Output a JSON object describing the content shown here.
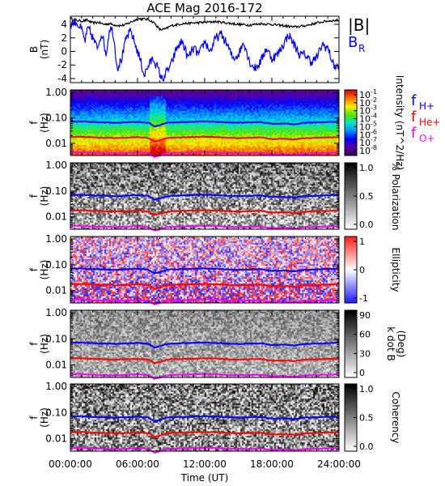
{
  "title": "ACE Mag 2016-172",
  "xlabel": "Time (UT)",
  "colors": {
    "fHp": "#0000ff",
    "fHep": "#ff0000",
    "fOp": "#ff00ff",
    "br": "#0000ff",
    "babs": "#000000"
  },
  "chart_data": [
    {
      "type": "line",
      "panel": "B",
      "ylabel": "B (nT)",
      "ylim": [
        -4.6,
        5.2
      ],
      "yticks": [
        "4",
        "2",
        "0",
        "-2",
        "-4"
      ],
      "ytick_values": [
        4,
        2,
        0,
        -2,
        -4
      ],
      "xlim": [
        0,
        24
      ],
      "xticks": [
        "00:00:00",
        "06:00:00",
        "12:00:00",
        "18:00:00",
        "24:00:00"
      ],
      "legend": [
        "|B|",
        "B_R"
      ],
      "legend_main": [
        "|B|",
        "B"
      ],
      "legend_sub": [
        "",
        "R"
      ],
      "series": [
        {
          "name": "|B|",
          "x": [
            0,
            0.5,
            1,
            1.5,
            2,
            2.5,
            3,
            3.5,
            4,
            4.5,
            5,
            5.5,
            6,
            6.5,
            7,
            7.5,
            8,
            8.5,
            9,
            10,
            11,
            12,
            13,
            14,
            15,
            16,
            17,
            18,
            19,
            20,
            21,
            22,
            23,
            24
          ],
          "values": [
            4.9,
            4.6,
            4.5,
            4.6,
            4.2,
            4.3,
            4.0,
            4.1,
            3.9,
            3.8,
            4.0,
            4.4,
            4.8,
            4.8,
            4.7,
            4.2,
            3.2,
            3.3,
            3.8,
            4.1,
            4.2,
            4.3,
            4.4,
            4.2,
            4.0,
            3.9,
            4.1,
            4.0,
            3.8,
            3.6,
            3.8,
            4.2,
            4.5,
            4.6
          ]
        },
        {
          "name": "B_R",
          "x": [
            0,
            0.5,
            1,
            1.3,
            1.6,
            2,
            2.4,
            2.8,
            3.2,
            3.5,
            3.8,
            4.2,
            4.6,
            5,
            5.4,
            5.8,
            6.2,
            6.6,
            7,
            7.4,
            7.8,
            8.2,
            8.6,
            9,
            9.5,
            10,
            10.5,
            11,
            11.5,
            12,
            12.5,
            13,
            13.5,
            14,
            14.5,
            15,
            15.5,
            16,
            16.5,
            17,
            17.5,
            18,
            18.5,
            19,
            19.5,
            20,
            20.5,
            21,
            21.5,
            22,
            22.5,
            23,
            23.5,
            24
          ],
          "values": [
            4.0,
            4.4,
            3.2,
            1.5,
            3.5,
            2.0,
            0.5,
            2.8,
            -0.5,
            3.5,
            3.0,
            -2.5,
            -1.0,
            2.0,
            3.0,
            1.0,
            -1.0,
            -3.5,
            -2.0,
            -1.0,
            -2.5,
            -4.2,
            -3.0,
            -2.0,
            0.5,
            1.5,
            -1.0,
            0.5,
            -0.5,
            1.5,
            0.0,
            2.0,
            2.5,
            1.0,
            -1.0,
            -0.5,
            1.5,
            -1.5,
            -2.5,
            -1.5,
            0.5,
            -1.0,
            -0.5,
            1.0,
            2.5,
            1.0,
            -0.5,
            -0.5,
            -1.5,
            -1.0,
            1.0,
            0.5,
            -2.0,
            -2.5
          ]
        }
      ]
    },
    {
      "type": "heatmap",
      "panel": "Intensity",
      "ylabel": "f (Hz)",
      "colorbar_label": "Intensity (nT^2/Hz)",
      "colorbar_ticks": [
        "10^-1",
        "10^-2",
        "10^-3",
        "10^-4",
        "10^-5",
        "10^-6",
        "10^-7",
        "10^-8"
      ],
      "yticks": [
        "1.00",
        "0.10",
        "0.01"
      ],
      "legend_main": [
        "f",
        "f",
        "f"
      ],
      "legend_sub": [
        "H+",
        "He+",
        "O+"
      ]
    },
    {
      "type": "heatmap",
      "panel": "Polarization",
      "ylabel": "f (Hz)",
      "colorbar_label": "% Polarization",
      "colorbar_ticks": [
        "1.0",
        "0.5",
        "0.0"
      ],
      "yticks": [
        "1.00",
        "0.10",
        "0.01"
      ]
    },
    {
      "type": "heatmap",
      "panel": "Ellipticity",
      "ylabel": "f (Hz)",
      "colorbar_label": "Ellipticity",
      "colorbar_ticks": [
        "1",
        "0",
        "-1"
      ],
      "yticks": [
        "1.00",
        "0.10",
        "0.01"
      ]
    },
    {
      "type": "heatmap",
      "panel": "k dot B",
      "ylabel": "f (Hz)",
      "colorbar_label": "k dot B (Deg)",
      "colorbar_label_lines": [
        "k dot B",
        "(Deg)"
      ],
      "colorbar_ticks": [
        "90",
        "60",
        "30",
        "0"
      ],
      "yticks": [
        "1.00",
        "0.10",
        "0.01"
      ]
    },
    {
      "type": "heatmap",
      "panel": "Coherency",
      "ylabel": "f (Hz)",
      "colorbar_label": "Coherency",
      "colorbar_ticks": [
        "1.0",
        "0.5",
        "0.0"
      ],
      "yticks": [
        "1.00",
        "0.10",
        "0.01"
      ]
    }
  ],
  "gyro": {
    "x": [
      0,
      1,
      2,
      3,
      4,
      5,
      6,
      7,
      7.5,
      8,
      8.5,
      9,
      10,
      11,
      12,
      13,
      14,
      15,
      16,
      17,
      18,
      19,
      20,
      21,
      22,
      23,
      24
    ],
    "fHp": [
      0.07,
      0.072,
      0.068,
      0.066,
      0.064,
      0.066,
      0.07,
      0.064,
      0.046,
      0.052,
      0.062,
      0.066,
      0.068,
      0.07,
      0.072,
      0.07,
      0.066,
      0.064,
      0.066,
      0.068,
      0.058,
      0.06,
      0.056,
      0.064,
      0.066,
      0.068,
      0.07
    ],
    "fHep": [
      0.0175,
      0.018,
      0.017,
      0.0165,
      0.016,
      0.0165,
      0.0175,
      0.016,
      0.0115,
      0.013,
      0.0155,
      0.0165,
      0.017,
      0.0175,
      0.018,
      0.0175,
      0.0165,
      0.016,
      0.0165,
      0.017,
      0.0145,
      0.015,
      0.014,
      0.016,
      0.0165,
      0.017,
      0.0175
    ],
    "fOp": [
      0.0044,
      0.0045,
      0.0042,
      0.0041,
      0.004,
      0.0041,
      0.0044,
      0.004,
      0.0029,
      0.0033,
      0.0039,
      0.0041,
      0.0042,
      0.0044,
      0.0045,
      0.0044,
      0.0041,
      0.004,
      0.0041,
      0.0042,
      0.0036,
      0.0038,
      0.0035,
      0.004,
      0.0041,
      0.0042,
      0.0044
    ]
  }
}
